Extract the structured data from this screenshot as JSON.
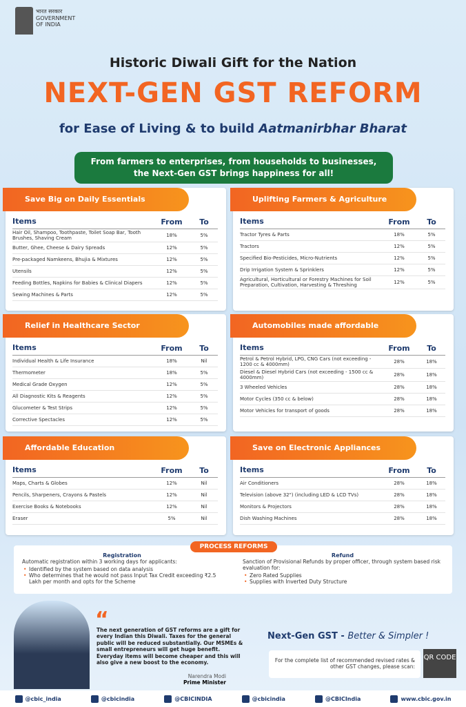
{
  "header": {
    "gov_hindi": "भारत सरकार",
    "gov_en_1": "GOVERNMENT",
    "gov_en_2": "OF INDIA",
    "kicker": "Historic Diwali Gift for the Nation",
    "headline": "NEXT-GEN GST REFORM",
    "subtitle": "for Ease of Living & to build",
    "subtitle_emphasis": "Aatmanirbhar Bharat",
    "banner_1": "From farmers to enterprises, from households to businesses,",
    "banner_2": "the Next-Gen GST brings happiness for all!"
  },
  "sections": [
    {
      "title": "Save Big on Daily Essentials",
      "columns": [
        "Items",
        "From",
        "To"
      ],
      "rows": [
        [
          "Hair Oil, Shampoo, Toothpaste, Toilet Soap Bar, Tooth Brushes, Shaving Cream",
          "18%",
          "5%"
        ],
        [
          "Butter, Ghee, Cheese & Dairy Spreads",
          "12%",
          "5%"
        ],
        [
          "Pre-packaged Namkeens, Bhujia & Mixtures",
          "12%",
          "5%"
        ],
        [
          "Utensils",
          "12%",
          "5%"
        ],
        [
          "Feeding Bottles, Napkins for Babies & Clinical Diapers",
          "12%",
          "5%"
        ],
        [
          "Sewing Machines & Parts",
          "12%",
          "5%"
        ]
      ]
    },
    {
      "title": "Uplifting Farmers & Agriculture",
      "columns": [
        "Items",
        "From",
        "To"
      ],
      "rows": [
        [
          "Tractor Tyres & Parts",
          "18%",
          "5%"
        ],
        [
          "Tractors",
          "12%",
          "5%"
        ],
        [
          "Specified Bio-Pesticides, Micro-Nutrients",
          "12%",
          "5%"
        ],
        [
          "Drip Irrigation System & Sprinklers",
          "12%",
          "5%"
        ],
        [
          "Agricultural, Horticultural or Forestry Machines for Soil Preparation, Cultivation, Harvesting & Threshing",
          "12%",
          "5%"
        ]
      ]
    },
    {
      "title": "Relief in Healthcare Sector",
      "columns": [
        "Items",
        "From",
        "To"
      ],
      "rows": [
        [
          "Individual Health & Life Insurance",
          "18%",
          "Nil"
        ],
        [
          "Thermometer",
          "18%",
          "5%"
        ],
        [
          "Medical Grade Oxygen",
          "12%",
          "5%"
        ],
        [
          "All Diagnostic Kits & Reagents",
          "12%",
          "5%"
        ],
        [
          "Glucometer & Test Strips",
          "12%",
          "5%"
        ],
        [
          "Corrective Spectacles",
          "12%",
          "5%"
        ]
      ]
    },
    {
      "title": "Automobiles made affordable",
      "columns": [
        "Items",
        "From",
        "To"
      ],
      "rows": [
        [
          "Petrol & Petrol Hybrid, LPG, CNG Cars (not exceeding - 1200 cc & 4000mm)",
          "28%",
          "18%"
        ],
        [
          "Diesel & Diesel Hybrid Cars (not exceeding - 1500 cc & 4000mm)",
          "28%",
          "18%"
        ],
        [
          "3 Wheeled Vehicles",
          "28%",
          "18%"
        ],
        [
          "Motor Cycles (350 cc & below)",
          "28%",
          "18%"
        ],
        [
          "Motor Vehicles for transport of goods",
          "28%",
          "18%"
        ]
      ]
    },
    {
      "title": "Affordable Education",
      "columns": [
        "Items",
        "From",
        "To"
      ],
      "rows": [
        [
          "Maps, Charts & Globes",
          "12%",
          "Nil"
        ],
        [
          "Pencils, Sharpeners, Crayons & Pastels",
          "12%",
          "Nil"
        ],
        [
          "Exercise Books & Notebooks",
          "12%",
          "Nil"
        ],
        [
          "Eraser",
          "5%",
          "Nil"
        ]
      ]
    },
    {
      "title": "Save on Electronic Appliances",
      "columns": [
        "Items",
        "From",
        "To"
      ],
      "rows": [
        [
          "Air Conditioners",
          "28%",
          "18%"
        ],
        [
          "Television (above 32\") (including LED & LCD TVs)",
          "28%",
          "18%"
        ],
        [
          "Monitors & Projectors",
          "28%",
          "18%"
        ],
        [
          "Dish Washing Machines",
          "28%",
          "18%"
        ]
      ]
    }
  ],
  "process": {
    "title": "PROCESS REFORMS",
    "registration": {
      "heading": "Registration",
      "intro": "Automatic registration within 3 working days for applicants:",
      "bullets": [
        "Identified by the system based on data analysis",
        "Who determines that he would not pass Input Tax Credit exceeding ₹2.5 Lakh per month and opts for the Scheme"
      ]
    },
    "refund": {
      "heading": "Refund",
      "intro": "Sanction of Provisional Refunds by proper officer, through system based risk evaluation for:",
      "bullets": [
        "Zero Rated Supplies",
        "Supplies with Inverted Duty Structure"
      ]
    }
  },
  "quote": {
    "text": "The next generation of GST reforms are a gift for every Indian this Diwali. Taxes for the general public will be reduced substantially. Our MSMEs & small entrepreneurs will get huge benefit. Everyday items will become cheaper and this will also give a new boost to the economy.",
    "name": "Narendra Modi",
    "role": "Prime Minister"
  },
  "tagline": {
    "main": "Next-Gen GST -",
    "emphasis": "Better & Simpler !",
    "note": "For the complete list of recommended revised rates & other GST changes, please scan:",
    "qr": "QR CODE"
  },
  "footer": {
    "links": [
      "@cbic_india",
      "@cbicindia",
      "@CBICINDIA",
      "@cbicindia",
      "@CBICIndia",
      "www.cbic.gov.in"
    ]
  }
}
